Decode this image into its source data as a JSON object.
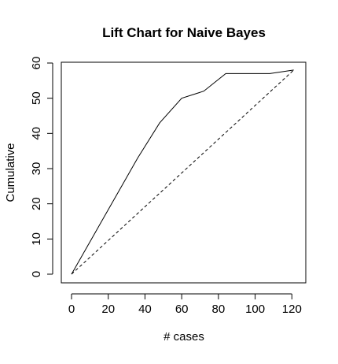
{
  "chart_data": {
    "type": "line",
    "title": "Lift Chart for Naive Bayes",
    "xlabel": "# cases",
    "ylabel": "Cumulative",
    "xlim": [
      0,
      122
    ],
    "ylim": [
      0,
      60
    ],
    "x_ticks": [
      0,
      20,
      40,
      60,
      80,
      100,
      120
    ],
    "y_ticks": [
      0,
      10,
      20,
      30,
      40,
      50,
      60
    ],
    "grid": false,
    "legend": "none",
    "series": [
      {
        "style": "solid",
        "color": "#000000",
        "x": [
          0,
          12,
          24,
          36,
          48,
          60,
          72,
          84,
          96,
          108,
          121
        ],
        "y": [
          0,
          11,
          22,
          33,
          43,
          50,
          52,
          57,
          57,
          57,
          58
        ]
      },
      {
        "style": "dashed",
        "color": "#000000",
        "x": [
          0,
          121
        ],
        "y": [
          0,
          58
        ]
      }
    ]
  }
}
